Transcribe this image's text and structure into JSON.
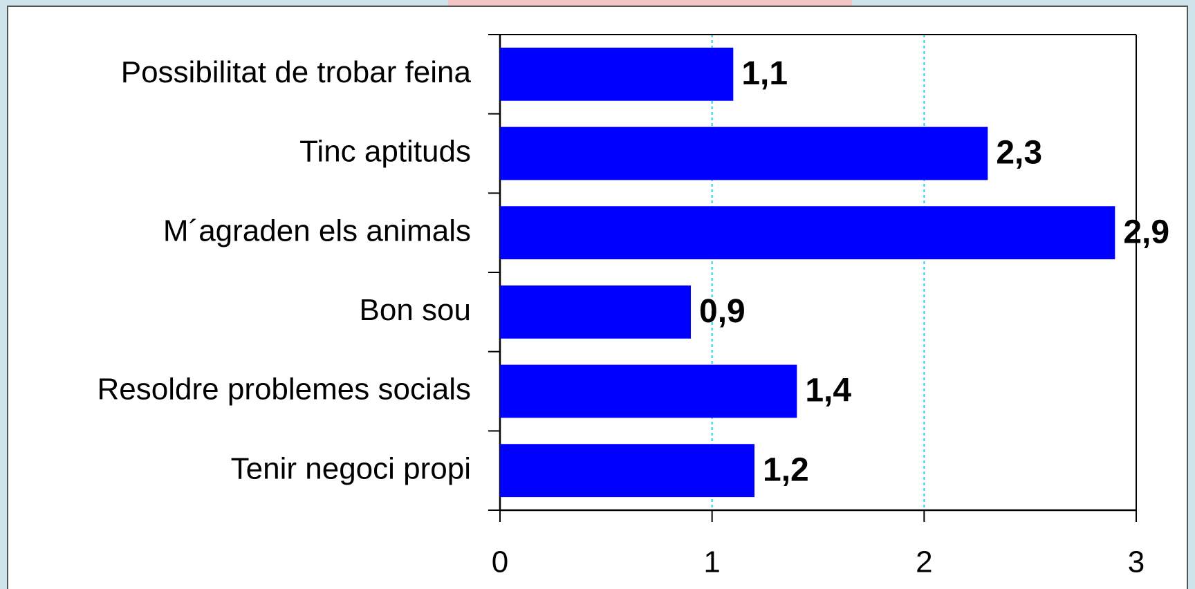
{
  "chart_data": {
    "type": "bar",
    "orientation": "horizontal",
    "categories": [
      "Possibilitat de trobar feina",
      "Tinc aptituds",
      "M´agraden els animals",
      "Bon sou",
      "Resoldre problemes socials",
      "Tenir negoci propi"
    ],
    "values": [
      1.1,
      2.3,
      2.9,
      0.9,
      1.4,
      1.2
    ],
    "value_labels": [
      "1,1",
      "2,3",
      "2,9",
      "0,9",
      "1,4",
      "1,2"
    ],
    "color": "#0000ff",
    "xlim": [
      0,
      3
    ],
    "xticks": [
      0,
      1,
      2,
      3
    ],
    "grid": true
  }
}
